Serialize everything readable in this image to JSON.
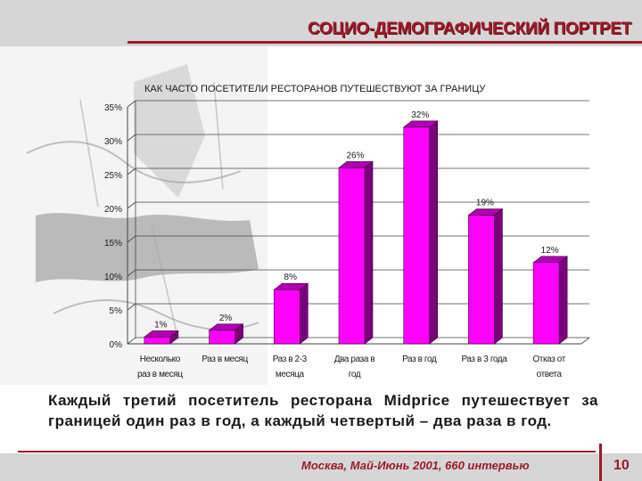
{
  "header": {
    "title": "СОЦИО-ДЕМОГРАФИЧЕСКИЙ ПОРТРЕТ"
  },
  "chart_data": {
    "type": "bar",
    "title": "КАК ЧАСТО ПОСЕТИТЕЛИ РЕСТОРАНОВ ПУТЕШЕСТВУЮТ ЗА ГРАНИЦУ",
    "categories": [
      [
        "Несколько",
        "раз в месяц"
      ],
      [
        "Раз в месяц"
      ],
      [
        "Раз в 2-3",
        "месяца"
      ],
      [
        "Два раза в",
        "год"
      ],
      [
        "Раз в год"
      ],
      [
        "Раз в 3 года"
      ],
      [
        "Отказ от",
        "ответа"
      ]
    ],
    "values": [
      1,
      2,
      8,
      26,
      32,
      19,
      12
    ],
    "value_labels": [
      "1%",
      "2%",
      "8%",
      "26%",
      "32%",
      "19%",
      "12%"
    ],
    "ylim": [
      0,
      35
    ],
    "yticks": [
      "0%",
      "5%",
      "10%",
      "15%",
      "20%",
      "25%",
      "30%",
      "35%"
    ],
    "grid": true,
    "colors": {
      "bar": "#ff00ff",
      "bar_side": "#7a007a",
      "bar_top": "#b000b0"
    }
  },
  "summary": "Каждый третий посетитель ресторана Midprice путешествует за границей один раз в год, а каждый четвертый – два раза в год.",
  "footer": {
    "text": "Москва, Май-Июнь 2001, 660 интервью",
    "page": "10"
  }
}
